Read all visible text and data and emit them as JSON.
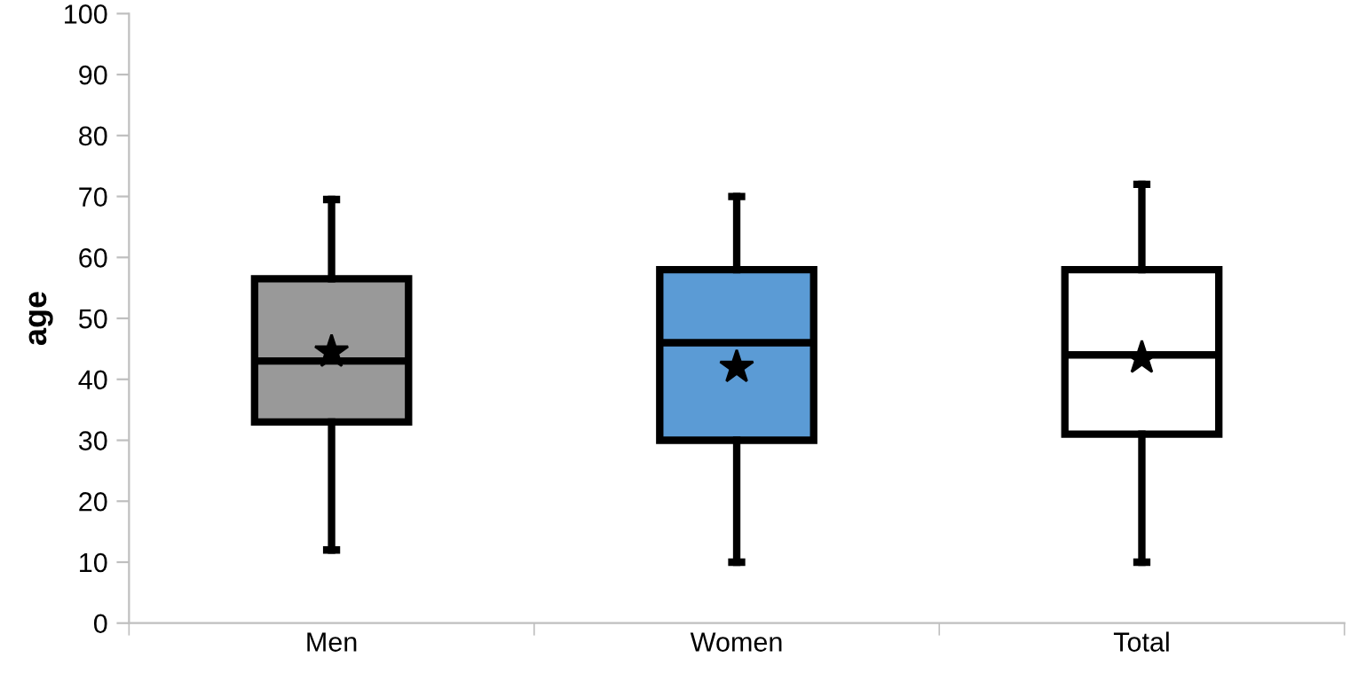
{
  "chart_data": {
    "type": "box",
    "ylabel": "age",
    "categories": [
      "Men",
      "Women",
      "Total"
    ],
    "boxes": [
      {
        "low": 12,
        "q1": 33,
        "median": 43,
        "q3": 56.5,
        "high": 69.5,
        "mean": 44.5
      },
      {
        "low": 10,
        "q1": 30,
        "median": 46,
        "q3": 58,
        "high": 70,
        "mean": 42
      },
      {
        "low": 10,
        "q1": 31,
        "median": 44,
        "q3": 58,
        "high": 72,
        "mean": 43.5
      }
    ],
    "colors": [
      "#999999",
      "#5b9bd5",
      "#ffffff"
    ],
    "ylim": [
      0,
      100
    ],
    "yticks": [
      0,
      10,
      20,
      30,
      40,
      50,
      60,
      70,
      80,
      90,
      100
    ],
    "grid": false,
    "marker": "star"
  }
}
